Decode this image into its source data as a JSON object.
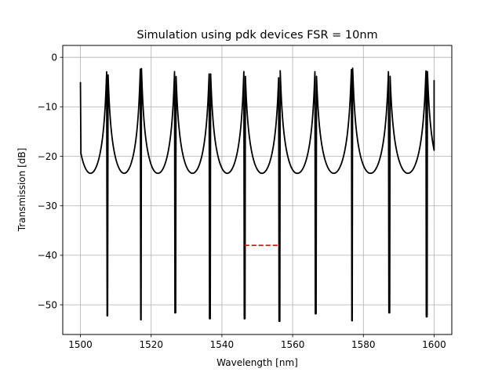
{
  "chart_data": {
    "type": "line",
    "title": "Simulation using pdk devices FSR = 10nm",
    "xlabel": "Wavelength [nm]",
    "ylabel": "Transmission [dB]",
    "xlim": [
      1495,
      1605
    ],
    "ylim": [
      -56,
      2.4
    ],
    "xticks": [
      1500,
      1520,
      1540,
      1560,
      1580,
      1600
    ],
    "yticks": [
      0,
      -10,
      -20,
      -30,
      -40,
      -50
    ],
    "grid": true,
    "line_color": "#000000",
    "marker_color": "#ff0000",
    "series": [
      {
        "style": "solid",
        "resonances": [
          {
            "x": 1507.6,
            "y": -52.2
          },
          {
            "x": 1517.1,
            "y": -53.0
          },
          {
            "x": 1526.8,
            "y": -51.6
          },
          {
            "x": 1536.6,
            "y": -52.8
          },
          {
            "x": 1546.4,
            "y": -52.8
          },
          {
            "x": 1556.3,
            "y": -53.3
          },
          {
            "x": 1566.5,
            "y": -51.8
          },
          {
            "x": 1576.8,
            "y": -53.2
          },
          {
            "x": 1587.3,
            "y": -51.6
          },
          {
            "x": 1597.9,
            "y": -52.4
          }
        ],
        "peak_level": -0.4,
        "start": {
          "x": 1500,
          "y": -5.0
        },
        "end": {
          "x": 1600,
          "y": -4.6
        }
      },
      {
        "style": "dashed",
        "x": [
          1546.4,
          1556.3
        ],
        "y": [
          -38,
          -38
        ]
      }
    ]
  }
}
